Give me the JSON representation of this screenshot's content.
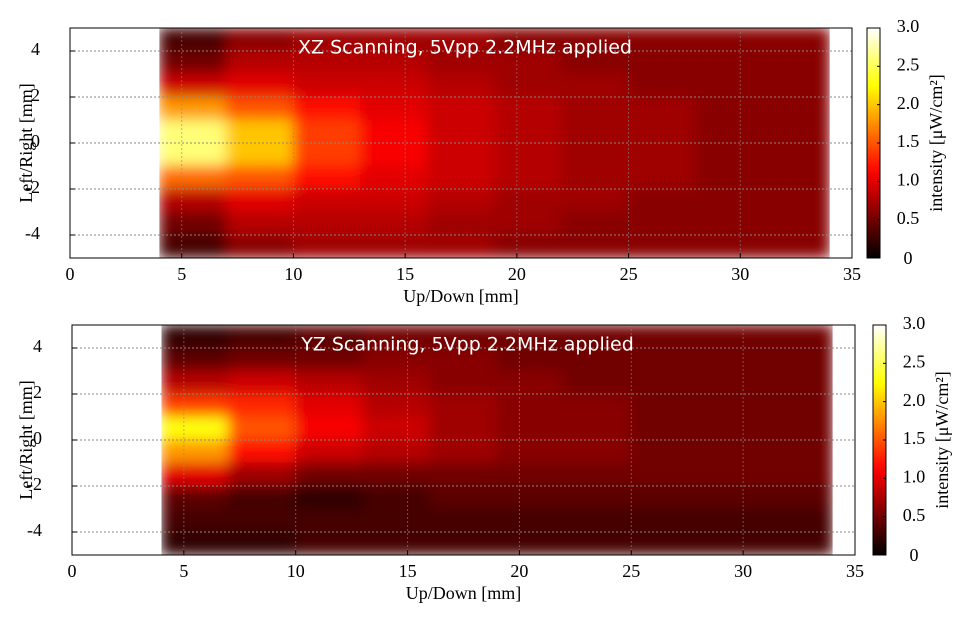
{
  "chart_data": [
    {
      "type": "heatmap",
      "title": "XZ Scanning, 5Vpp 2.2MHz applied",
      "xlabel": "Up/Down [mm]",
      "ylabel": "Left/Right [mm]",
      "colorbar_label": "intensity [μW/cm²]",
      "colormap": "hot",
      "grid": true,
      "xlim": [
        0,
        35
      ],
      "xticks": [
        0,
        5,
        10,
        15,
        20,
        25,
        30,
        35
      ],
      "ylim": [
        -5,
        5
      ],
      "yticks": [
        -4,
        -2,
        0,
        2,
        4
      ],
      "clim": [
        0,
        3
      ],
      "cticks": [
        0,
        0.5,
        {
          "value": 1,
          "label": "1.0"
        },
        1.5,
        {
          "value": 2,
          "label": "2.0"
        },
        2.5,
        {
          "value": 3,
          "label": "3.0"
        }
      ],
      "x": [
        5.5,
        8.5,
        11.5,
        14.5,
        17.5,
        20.5,
        23.5,
        26.5,
        29.5,
        32.5
      ],
      "y": [
        4.5,
        3.5,
        2.5,
        1.5,
        0.5,
        -0.5,
        -1.5,
        -2.5,
        -3.5,
        -4.5
      ],
      "values": [
        [
          0.3,
          0.6,
          0.7,
          0.7,
          0.7,
          0.6,
          0.6,
          0.6,
          0.6,
          0.6
        ],
        [
          0.5,
          0.8,
          0.8,
          0.8,
          0.7,
          0.7,
          0.6,
          0.6,
          0.6,
          0.6
        ],
        [
          0.9,
          1.0,
          0.9,
          0.9,
          0.8,
          0.7,
          0.7,
          0.6,
          0.6,
          0.6
        ],
        [
          1.8,
          1.5,
          1.2,
          1.0,
          0.9,
          0.8,
          0.7,
          0.7,
          0.6,
          0.6
        ],
        [
          2.6,
          2.0,
          1.4,
          1.1,
          0.9,
          0.8,
          0.7,
          0.7,
          0.6,
          0.6
        ],
        [
          2.6,
          2.0,
          1.4,
          1.1,
          0.9,
          0.8,
          0.7,
          0.7,
          0.6,
          0.6
        ],
        [
          1.6,
          1.5,
          1.2,
          1.0,
          0.9,
          0.8,
          0.7,
          0.7,
          0.6,
          0.6
        ],
        [
          0.8,
          1.0,
          0.9,
          0.9,
          0.8,
          0.7,
          0.7,
          0.6,
          0.6,
          0.6
        ],
        [
          0.5,
          0.8,
          0.8,
          0.8,
          0.7,
          0.7,
          0.6,
          0.6,
          0.6,
          0.6
        ],
        [
          0.3,
          0.6,
          0.7,
          0.7,
          0.7,
          0.6,
          0.6,
          0.6,
          0.6,
          0.6
        ]
      ]
    },
    {
      "type": "heatmap",
      "title": "YZ Scanning, 5Vpp 2.2MHz applied",
      "xlabel": "Up/Down [mm]",
      "ylabel": "Left/Right [mm]",
      "colorbar_label": "intensity [μW/cm²]",
      "colormap": "hot",
      "grid": true,
      "xlim": [
        0,
        35
      ],
      "xticks": [
        0,
        5,
        10,
        15,
        20,
        25,
        30,
        35
      ],
      "ylim": [
        -5,
        5
      ],
      "yticks": [
        -4,
        -2,
        0,
        2,
        4
      ],
      "clim": [
        0,
        3
      ],
      "cticks": [
        0,
        0.5,
        {
          "value": 1,
          "label": "1.0"
        },
        1.5,
        {
          "value": 2,
          "label": "2.0"
        },
        2.5,
        {
          "value": 3,
          "label": "3.0"
        }
      ],
      "x": [
        5.5,
        8.5,
        11.5,
        14.5,
        17.5,
        20.5,
        23.5,
        26.5,
        29.5,
        32.5
      ],
      "y": [
        4.5,
        3.5,
        2.5,
        1.5,
        0.5,
        -0.5,
        -1.5,
        -2.5,
        -3.5,
        -4.5
      ],
      "values": [
        [
          0.2,
          0.3,
          0.4,
          0.5,
          0.5,
          0.5,
          0.5,
          0.5,
          0.5,
          0.5
        ],
        [
          0.4,
          0.5,
          0.5,
          0.6,
          0.6,
          0.5,
          0.5,
          0.5,
          0.5,
          0.5
        ],
        [
          0.8,
          0.9,
          0.8,
          0.7,
          0.6,
          0.6,
          0.5,
          0.5,
          0.5,
          0.5
        ],
        [
          1.4,
          1.3,
          1.0,
          0.8,
          0.7,
          0.6,
          0.6,
          0.5,
          0.5,
          0.5
        ],
        [
          2.3,
          1.5,
          1.1,
          0.9,
          0.7,
          0.6,
          0.6,
          0.5,
          0.5,
          0.5
        ],
        [
          1.8,
          1.2,
          0.9,
          0.8,
          0.7,
          0.6,
          0.6,
          0.5,
          0.5,
          0.5
        ],
        [
          1.0,
          0.7,
          0.5,
          0.5,
          0.5,
          0.5,
          0.5,
          0.5,
          0.5,
          0.5
        ],
        [
          0.4,
          0.3,
          0.2,
          0.3,
          0.4,
          0.4,
          0.4,
          0.4,
          0.4,
          0.4
        ],
        [
          0.3,
          0.3,
          0.3,
          0.3,
          0.3,
          0.3,
          0.3,
          0.3,
          0.3,
          0.3
        ],
        [
          0.2,
          0.2,
          0.3,
          0.3,
          0.3,
          0.3,
          0.3,
          0.3,
          0.3,
          0.3
        ]
      ]
    }
  ]
}
